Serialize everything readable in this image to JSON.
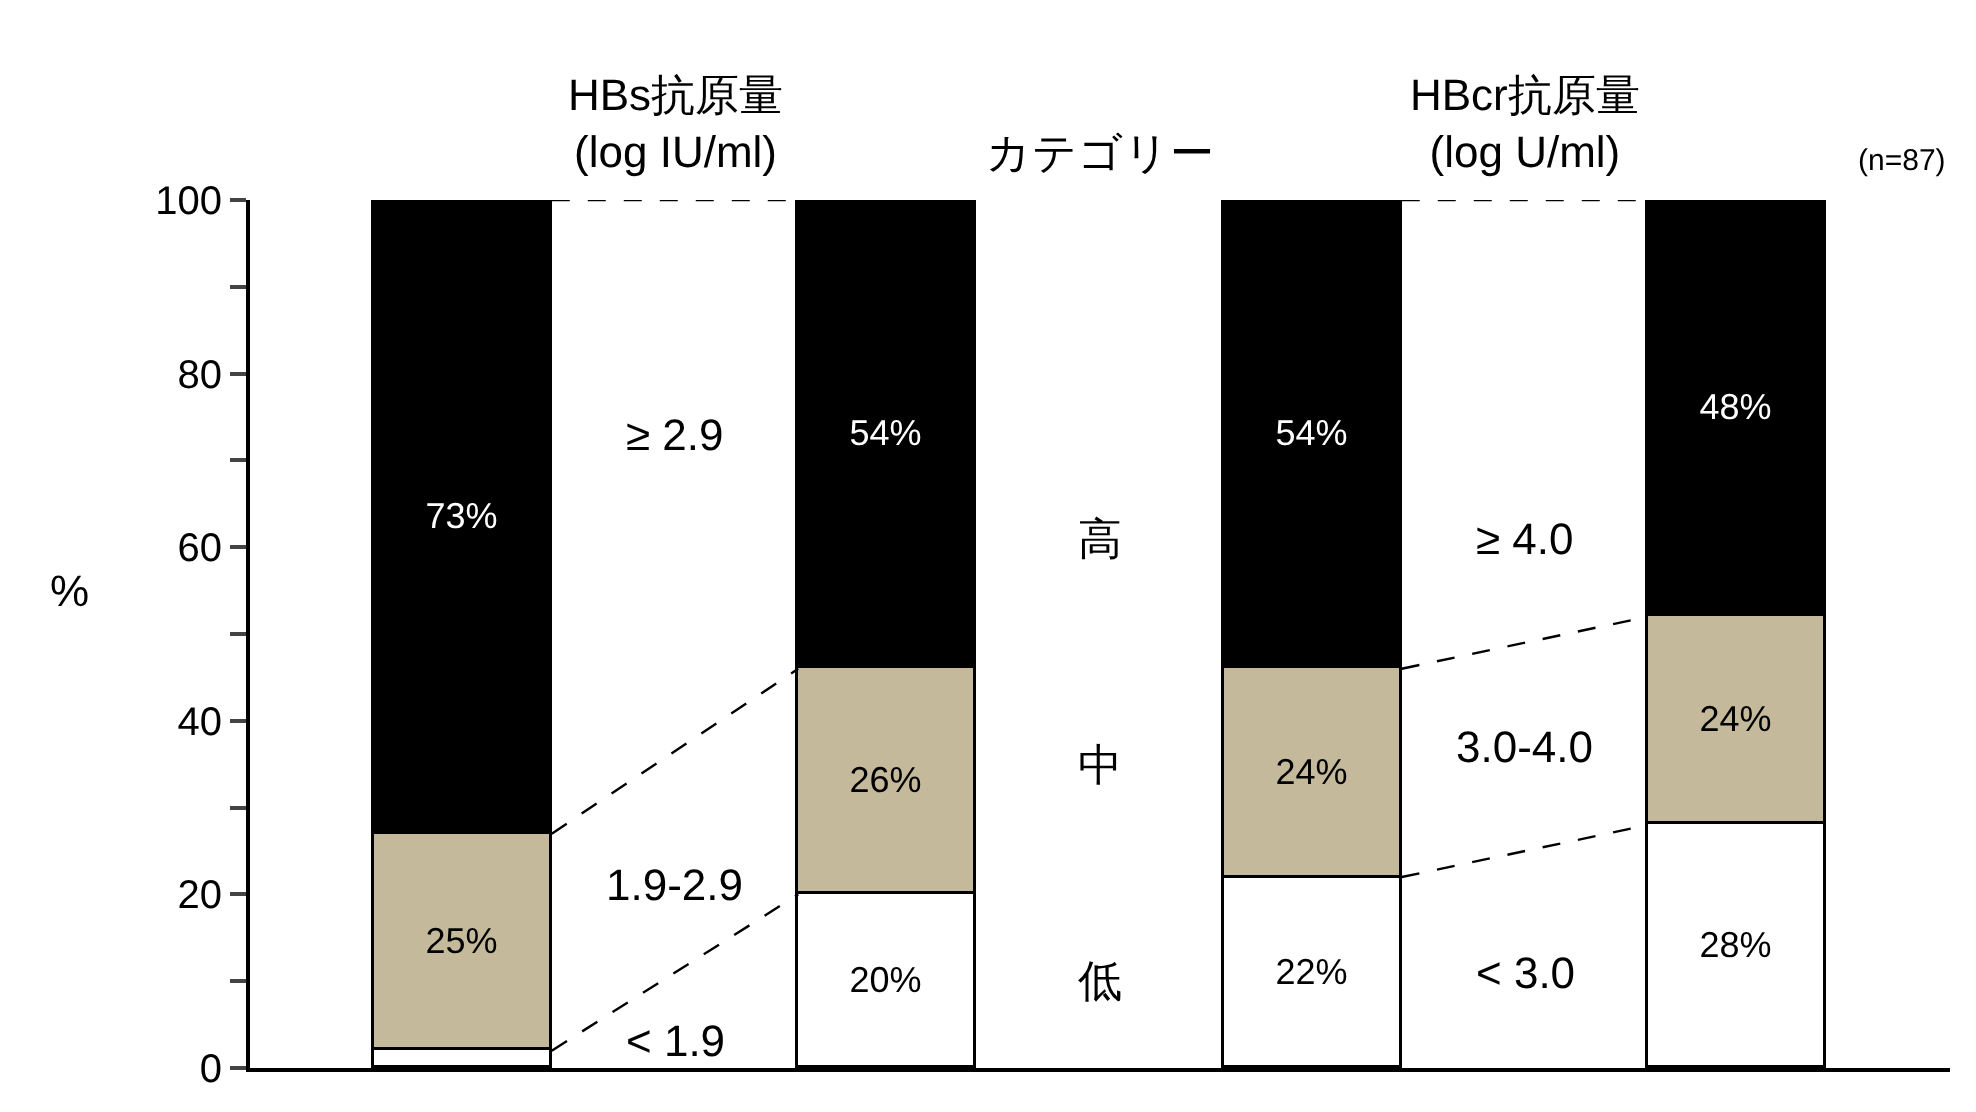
{
  "chart_data": {
    "type": "bar",
    "stacked": true,
    "categories": [
      null,
      null,
      null,
      null
    ],
    "ylabel": "%",
    "ylim": [
      0,
      100
    ],
    "yticks": [
      0,
      {
        "value": 10,
        "label": null
      },
      20,
      {
        "value": 30,
        "label": null
      },
      40,
      {
        "value": 50,
        "label": null
      },
      60,
      {
        "value": 70,
        "label": null
      },
      80,
      {
        "value": 90,
        "label": null
      },
      100
    ],
    "series": [
      {
        "color": "#ffffff",
        "values": [
          2,
          20,
          22,
          28
        ],
        "value_labels": [
          null,
          "20%",
          "22%",
          "28%"
        ]
      },
      {
        "color": "#c4b99a",
        "values": [
          25,
          26,
          24,
          24
        ],
        "value_labels": [
          "25%",
          "26%",
          "24%",
          "24%"
        ]
      },
      {
        "color": "#000000",
        "values": [
          73,
          54,
          54,
          48
        ],
        "value_labels": [
          "73%",
          "54%",
          "54%",
          "48%"
        ]
      }
    ],
    "annotations": [
      "HBs抗原量\n(log IU/ml)",
      "カテゴリー",
      "HBcr抗原量\n(log U/ml)",
      "(n=87)",
      "≥ 2.9",
      "1.9-2.9",
      "< 1.9",
      "高",
      "中",
      "低",
      "≥ 4.0",
      "3.0-4.0",
      "< 3.0"
    ],
    "tick_labels": "y"
  }
}
